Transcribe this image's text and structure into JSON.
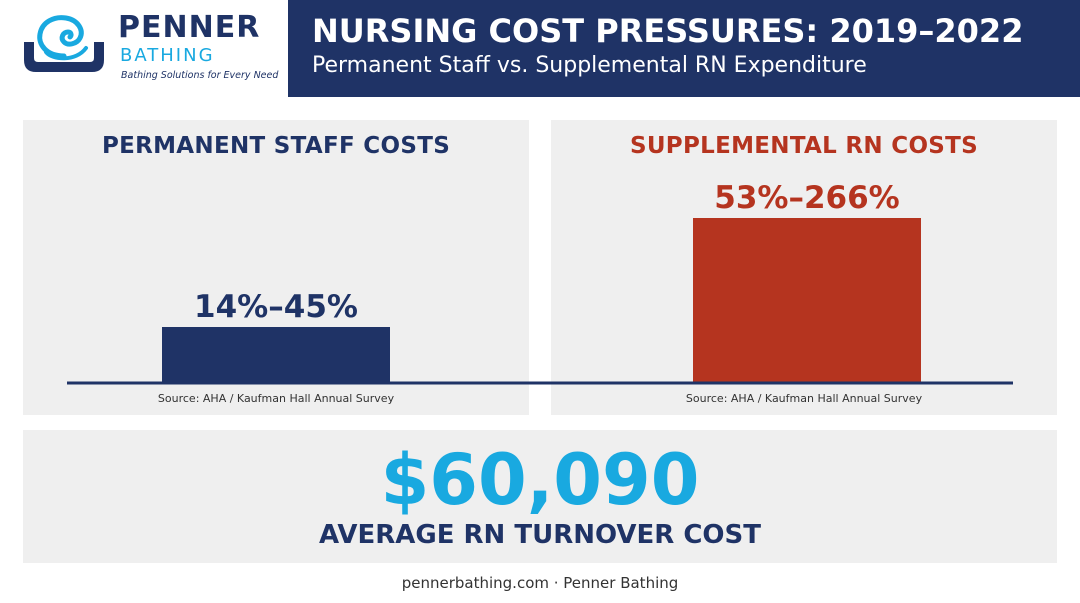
{
  "brand": {
    "name": "PENNER",
    "sub": "BATHING",
    "tagline": "Bathing Solutions for Every Need"
  },
  "header": {
    "title": "NURSING COST PRESSURES: 2019–2022",
    "subtitle": "Permanent Staff vs. Supplemental RN Expenditure"
  },
  "colors": {
    "navy": "#1f3366",
    "rust": "#b5341f",
    "cyan": "#19a9e0",
    "panel": "#efefef"
  },
  "chart_data": {
    "type": "bar",
    "categories": [
      "PERMANENT STAFF COSTS",
      "SUPPLEMENTAL RN COSTS"
    ],
    "series": [
      {
        "values": [
          {
            "category": "PERMANENT STAFF COSTS",
            "low": 14,
            "high": 45,
            "label": "14%–45%",
            "color": "#1f3366"
          },
          {
            "category": "SUPPLEMENTAL RN COSTS",
            "low": 53,
            "high": 266,
            "label": "53%–266%",
            "color": "#b5341f"
          }
        ]
      }
    ],
    "source": "Source: AHA / Kaufman Hall Annual Survey",
    "grid": false
  },
  "stat": {
    "value": "$60,090",
    "label": "AVERAGE RN TURNOVER COST"
  },
  "footer": "pennerbathing.com · Penner Bathing"
}
